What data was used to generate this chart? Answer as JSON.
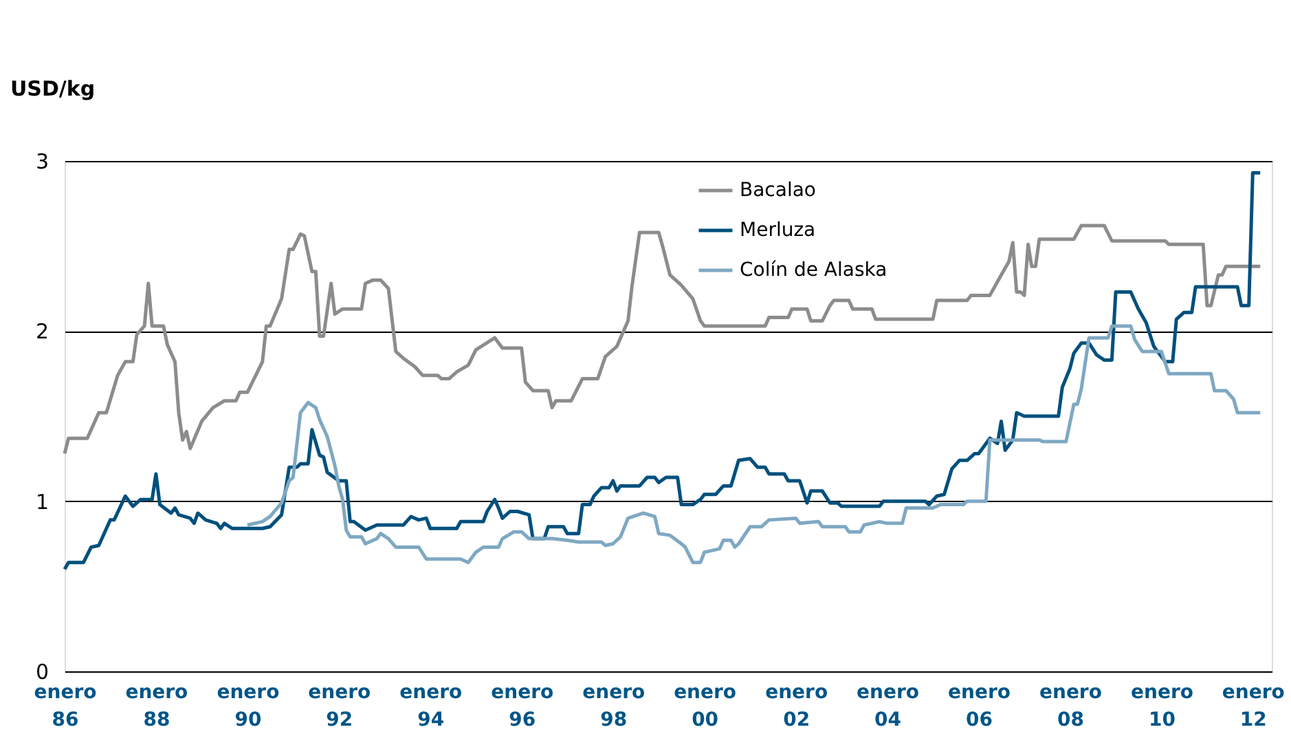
{
  "chart_data": {
    "type": "line",
    "ylabel": "USD/kg",
    "ylim": [
      0,
      3
    ],
    "yticks": [
      0,
      1,
      2,
      3
    ],
    "grid": "y",
    "legend": "top right",
    "xlim": [
      "1986-01",
      "2012-06"
    ],
    "xticks": [
      {
        "value": "1986-01",
        "label": "enero 86"
      },
      {
        "value": "1988-01",
        "label": "enero 88"
      },
      {
        "value": "1990-01",
        "label": "enero 90"
      },
      {
        "value": "1992-01",
        "label": "enero 92"
      },
      {
        "value": "1994-01",
        "label": "enero 94"
      },
      {
        "value": "1996-01",
        "label": "enero 96"
      },
      {
        "value": "1998-01",
        "label": "enero 98"
      },
      {
        "value": "2000-01",
        "label": "enero 00"
      },
      {
        "value": "2002-01",
        "label": "enero 02"
      },
      {
        "value": "2004-01",
        "label": "enero 04"
      },
      {
        "value": "2006-01",
        "label": "enero 06"
      },
      {
        "value": "2008-01",
        "label": "enero 08"
      },
      {
        "value": "2010-01",
        "label": "enero 10"
      },
      {
        "value": "2012-01",
        "label": "enero 12"
      }
    ],
    "series": [
      {
        "name": "Bacalao",
        "color": "#8c8c8c",
        "x": [
          "1986-01",
          "1986-02",
          "1986-07",
          "1986-10",
          "1986-12",
          "1987-03",
          "1987-05",
          "1987-07",
          "1987-08",
          "1987-10",
          "1987-11",
          "1987-12",
          "1988-03",
          "1988-04",
          "1988-06",
          "1988-07",
          "1988-08",
          "1988-09",
          "1988-10",
          "1989-01",
          "1989-04",
          "1989-07",
          "1989-10",
          "1989-11",
          "1990-01",
          "1990-05",
          "1990-06",
          "1990-07",
          "1990-10",
          "1990-12",
          "1991-01",
          "1991-03",
          "1991-04",
          "1991-06",
          "1991-07",
          "1991-08",
          "1991-09",
          "1991-11",
          "1991-12",
          "1992-02",
          "1992-07",
          "1992-08",
          "1992-10",
          "1992-12",
          "1993-02",
          "1993-04",
          "1993-06",
          "1993-09",
          "1993-11",
          "1994-03",
          "1994-04",
          "1994-06",
          "1994-08",
          "1994-11",
          "1995-01",
          "1995-06",
          "1995-08",
          "1996-01",
          "1996-02",
          "1996-04",
          "1996-08",
          "1996-09",
          "1996-10",
          "1997-02",
          "1997-05",
          "1997-09",
          "1997-11",
          "1998-02",
          "1998-05",
          "1998-06",
          "1998-08",
          "1999-01",
          "1999-02",
          "1999-04",
          "1999-07",
          "1999-10",
          "1999-12",
          "2000-01",
          "2000-07",
          "2001-05",
          "2001-06",
          "2001-11",
          "2001-12",
          "2002-04",
          "2002-05",
          "2002-08",
          "2002-10",
          "2002-11",
          "2003-03",
          "2003-04",
          "2003-09",
          "2003-10",
          "2005-01",
          "2005-02",
          "2005-10",
          "2005-11",
          "2006-04",
          "2006-07",
          "2006-09",
          "2006-10",
          "2006-11",
          "2006-12",
          "2007-01",
          "2007-02",
          "2007-03",
          "2007-04",
          "2007-05",
          "2008-02",
          "2008-04",
          "2008-10",
          "2008-12",
          "2010-02",
          "2010-03",
          "2010-12",
          "2011-01",
          "2011-02",
          "2011-04",
          "2011-05",
          "2011-06",
          "2012-03"
        ],
        "values": [
          1.28,
          1.37,
          1.37,
          1.52,
          1.52,
          1.74,
          1.82,
          1.82,
          1.98,
          2.03,
          2.28,
          2.03,
          2.03,
          1.92,
          1.82,
          1.52,
          1.36,
          1.41,
          1.31,
          1.47,
          1.55,
          1.59,
          1.59,
          1.64,
          1.64,
          1.82,
          2.03,
          2.03,
          2.19,
          2.48,
          2.48,
          2.57,
          2.56,
          2.35,
          2.35,
          1.97,
          1.97,
          2.28,
          2.1,
          2.13,
          2.13,
          2.28,
          2.3,
          2.3,
          2.25,
          1.88,
          1.84,
          1.79,
          1.74,
          1.74,
          1.72,
          1.72,
          1.76,
          1.8,
          1.89,
          1.96,
          1.9,
          1.9,
          1.7,
          1.65,
          1.65,
          1.55,
          1.59,
          1.59,
          1.72,
          1.72,
          1.85,
          1.91,
          2.06,
          2.26,
          2.58,
          2.58,
          2.5,
          2.33,
          2.27,
          2.19,
          2.06,
          2.03,
          2.03,
          2.03,
          2.08,
          2.08,
          2.13,
          2.13,
          2.06,
          2.06,
          2.15,
          2.18,
          2.18,
          2.13,
          2.13,
          2.07,
          2.07,
          2.18,
          2.18,
          2.21,
          2.21,
          2.33,
          2.41,
          2.52,
          2.23,
          2.23,
          2.21,
          2.51,
          2.38,
          2.38,
          2.54,
          2.54,
          2.62,
          2.62,
          2.53,
          2.53,
          2.51,
          2.51,
          2.15,
          2.15,
          2.33,
          2.33,
          2.38,
          2.38
        ]
      },
      {
        "name": "Merluza",
        "color": "#00507d",
        "x": [
          "1986-01",
          "1986-02",
          "1986-06",
          "1986-08",
          "1986-10",
          "1987-01",
          "1987-02",
          "1987-05",
          "1987-07",
          "1987-09",
          "1987-12",
          "1988-01",
          "1988-02",
          "1988-05",
          "1988-06",
          "1988-07",
          "1988-10",
          "1988-11",
          "1988-12",
          "1989-02",
          "1989-05",
          "1989-06",
          "1989-07",
          "1989-09",
          "1990-05",
          "1990-07",
          "1990-10",
          "1990-12",
          "1991-02",
          "1991-03",
          "1991-05",
          "1991-06",
          "1991-08",
          "1991-09",
          "1991-10",
          "1992-01",
          "1992-03",
          "1992-04",
          "1992-05",
          "1992-08",
          "1992-11",
          "1993-06",
          "1993-08",
          "1993-10",
          "1993-12",
          "1994-01",
          "1994-08",
          "1994-09",
          "1995-03",
          "1995-04",
          "1995-06",
          "1995-07",
          "1995-08",
          "1995-10",
          "1995-12",
          "1996-03",
          "1996-04",
          "1996-07",
          "1996-08",
          "1996-12",
          "1997-01",
          "1997-04",
          "1997-05",
          "1997-07",
          "1997-08",
          "1997-10",
          "1997-12",
          "1998-01",
          "1998-02",
          "1998-03",
          "1998-08",
          "1998-10",
          "1998-12",
          "1999-01",
          "1999-03",
          "1999-06",
          "1999-07",
          "1999-10",
          "1999-12",
          "2000-01",
          "2000-04",
          "2000-06",
          "2000-08",
          "2000-10",
          "2001-01",
          "2001-03",
          "2001-05",
          "2001-06",
          "2001-10",
          "2001-11",
          "2002-02",
          "2002-04",
          "2002-05",
          "2002-08",
          "2002-10",
          "2002-12",
          "2003-01",
          "2003-11",
          "2003-12",
          "2004-11",
          "2004-12",
          "2005-02",
          "2005-04",
          "2005-06",
          "2005-08",
          "2005-10",
          "2005-12",
          "2006-01",
          "2006-04",
          "2006-06",
          "2006-07",
          "2006-08",
          "2006-10",
          "2006-11",
          "2007-01",
          "2007-10",
          "2007-11",
          "2008-01",
          "2008-02",
          "2008-04",
          "2008-06",
          "2008-08",
          "2008-10",
          "2008-12",
          "2009-01",
          "2009-05",
          "2009-07",
          "2009-09",
          "2009-11",
          "2010-02",
          "2010-04",
          "2010-05",
          "2010-07",
          "2010-09",
          "2010-10",
          "2011-09",
          "2011-10",
          "2011-12",
          "2012-01",
          "2012-03"
        ],
        "values": [
          0.6,
          0.64,
          0.64,
          0.73,
          0.74,
          0.89,
          0.89,
          1.03,
          0.97,
          1.01,
          1.01,
          1.16,
          0.98,
          0.93,
          0.96,
          0.92,
          0.9,
          0.87,
          0.93,
          0.89,
          0.87,
          0.84,
          0.87,
          0.84,
          0.84,
          0.85,
          0.92,
          1.2,
          1.2,
          1.22,
          1.22,
          1.42,
          1.27,
          1.26,
          1.17,
          1.12,
          1.12,
          0.88,
          0.88,
          0.83,
          0.86,
          0.86,
          0.91,
          0.89,
          0.9,
          0.84,
          0.84,
          0.88,
          0.88,
          0.94,
          1.01,
          0.96,
          0.9,
          0.94,
          0.94,
          0.92,
          0.78,
          0.78,
          0.85,
          0.85,
          0.81,
          0.81,
          0.98,
          0.98,
          1.03,
          1.08,
          1.08,
          1.12,
          1.06,
          1.09,
          1.09,
          1.14,
          1.14,
          1.11,
          1.14,
          1.14,
          0.98,
          0.98,
          1.01,
          1.04,
          1.04,
          1.09,
          1.09,
          1.24,
          1.25,
          1.2,
          1.2,
          1.16,
          1.16,
          1.12,
          1.12,
          0.99,
          1.06,
          1.06,
          0.99,
          0.99,
          0.97,
          0.97,
          1.0,
          1.0,
          0.98,
          1.03,
          1.04,
          1.19,
          1.24,
          1.24,
          1.28,
          1.28,
          1.37,
          1.34,
          1.47,
          1.3,
          1.36,
          1.52,
          1.5,
          1.5,
          1.67,
          1.78,
          1.87,
          1.93,
          1.93,
          1.86,
          1.83,
          1.83,
          2.23,
          2.23,
          2.13,
          2.05,
          1.91,
          1.82,
          1.82,
          2.07,
          2.11,
          2.11,
          2.26,
          2.26,
          2.15,
          2.15,
          2.93,
          2.93
        ]
      },
      {
        "name": "Colín de Alaska",
        "color": "#7fa8c2",
        "x": [
          "1990-01",
          "1990-05",
          "1990-07",
          "1990-10",
          "1990-12",
          "1991-01",
          "1991-03",
          "1991-05",
          "1991-07",
          "1991-08",
          "1991-10",
          "1991-12",
          "1992-01",
          "1992-02",
          "1992-03",
          "1992-04",
          "1992-07",
          "1992-08",
          "1992-11",
          "1992-12",
          "1993-02",
          "1993-04",
          "1993-10",
          "1993-12",
          "1994-09",
          "1994-11",
          "1995-01",
          "1995-03",
          "1995-07",
          "1995-08",
          "1995-11",
          "1996-01",
          "1996-03",
          "1996-09",
          "1997-01",
          "1997-04",
          "1997-10",
          "1997-11",
          "1998-01",
          "1998-03",
          "1998-05",
          "1998-09",
          "1998-12",
          "1999-01",
          "1999-04",
          "1999-07",
          "1999-08",
          "1999-10",
          "1999-12",
          "2000-01",
          "2000-05",
          "2000-06",
          "2000-08",
          "2000-09",
          "2000-10",
          "2001-01",
          "2001-04",
          "2001-06",
          "2002-01",
          "2002-02",
          "2002-07",
          "2002-08",
          "2003-02",
          "2003-03",
          "2003-06",
          "2003-07",
          "2003-11",
          "2004-01",
          "2004-05",
          "2004-06",
          "2005-01",
          "2005-03",
          "2005-09",
          "2005-10",
          "2006-03",
          "2006-04",
          "2007-05",
          "2007-06",
          "2007-12",
          "2008-02",
          "2008-03",
          "2008-04",
          "2008-06",
          "2008-11",
          "2008-12",
          "2009-05",
          "2009-06",
          "2009-08",
          "2010-01",
          "2010-03",
          "2011-02",
          "2011-03",
          "2011-06",
          "2011-08",
          "2011-09",
          "2012-03"
        ],
        "values": [
          0.86,
          0.88,
          0.91,
          0.99,
          1.12,
          1.14,
          1.52,
          1.58,
          1.55,
          1.48,
          1.38,
          1.21,
          1.09,
          1.01,
          0.83,
          0.79,
          0.79,
          0.75,
          0.78,
          0.81,
          0.78,
          0.73,
          0.73,
          0.66,
          0.66,
          0.64,
          0.7,
          0.73,
          0.73,
          0.78,
          0.82,
          0.82,
          0.78,
          0.78,
          0.77,
          0.76,
          0.76,
          0.74,
          0.75,
          0.79,
          0.9,
          0.93,
          0.91,
          0.81,
          0.8,
          0.75,
          0.73,
          0.64,
          0.64,
          0.7,
          0.72,
          0.77,
          0.77,
          0.73,
          0.75,
          0.85,
          0.85,
          0.89,
          0.9,
          0.87,
          0.88,
          0.85,
          0.85,
          0.82,
          0.82,
          0.86,
          0.88,
          0.87,
          0.87,
          0.96,
          0.96,
          0.98,
          0.98,
          1.0,
          1.0,
          1.36,
          1.36,
          1.35,
          1.35,
          1.57,
          1.57,
          1.66,
          1.96,
          1.96,
          2.03,
          2.03,
          1.95,
          1.88,
          1.88,
          1.75,
          1.75,
          1.65,
          1.65,
          1.6,
          1.52,
          1.52
        ]
      }
    ]
  }
}
